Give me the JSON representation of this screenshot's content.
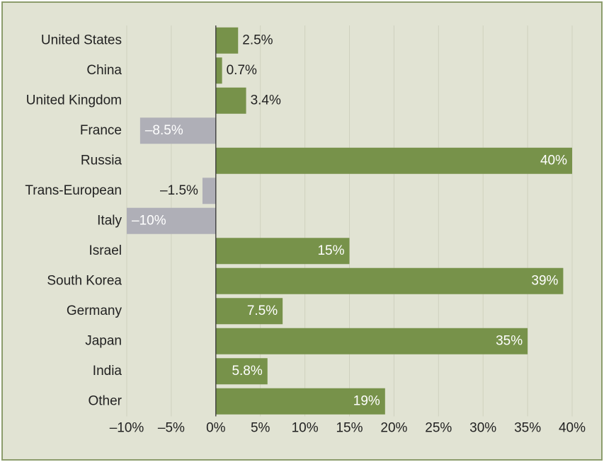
{
  "chart_data": {
    "type": "hbar",
    "categories": [
      "United States",
      "China",
      "United Kingdom",
      "France",
      "Russia",
      "Trans-European",
      "Italy",
      "Israel",
      "South Korea",
      "Germany",
      "Japan",
      "India",
      "Other"
    ],
    "values": [
      2.5,
      0.7,
      3.4,
      -8.5,
      40,
      -1.5,
      -10,
      15,
      39,
      7.5,
      35,
      5.8,
      19
    ],
    "value_labels": [
      "2.5%",
      "0.7%",
      "3.4%",
      "–8.5%",
      "40%",
      "–1.5%",
      "–10%",
      "15%",
      "39%",
      "7.5%",
      "35%",
      "5.8%",
      "19%"
    ],
    "color": "#77924a",
    "negative_color": "#afafb7",
    "xlim": [
      -10,
      40
    ],
    "xticks": [
      {
        "value": -10,
        "label": "–10%"
      },
      {
        "value": -5,
        "label": "–5%"
      },
      {
        "value": 0,
        "label": "0%"
      },
      {
        "value": 5,
        "label": "5%"
      },
      {
        "value": 10,
        "label": "10%"
      },
      {
        "value": 15,
        "label": "15%"
      },
      {
        "value": 20,
        "label": "20%"
      },
      {
        "value": 25,
        "label": "25%"
      },
      {
        "value": 30,
        "label": "30%"
      },
      {
        "value": 35,
        "label": "35%"
      },
      {
        "value": 40,
        "label": "40%"
      }
    ],
    "grid": true
  }
}
